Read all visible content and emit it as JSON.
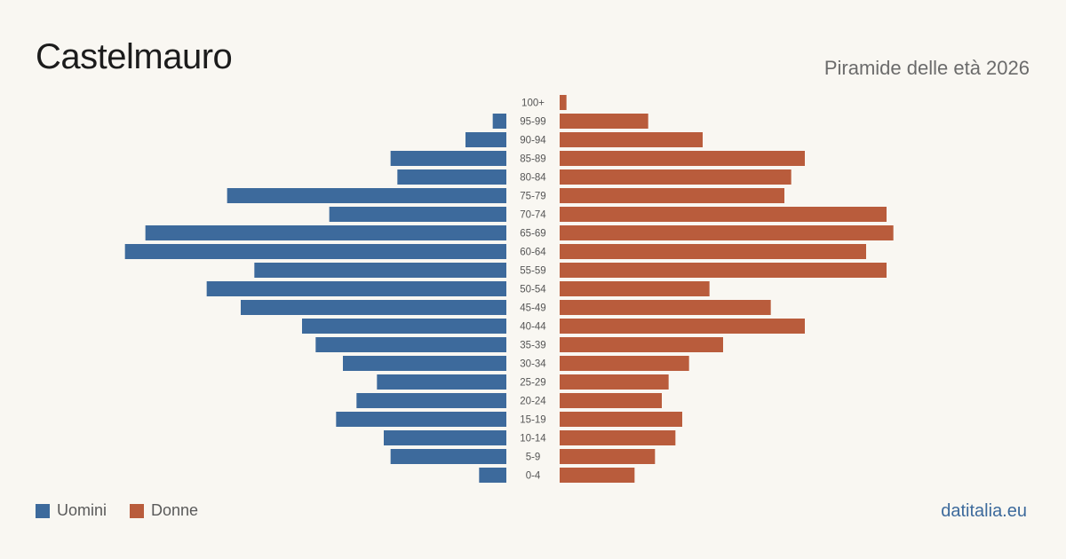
{
  "header": {
    "title": "Castelmauro",
    "subtitle": "Piramide delle età 2026"
  },
  "legend": {
    "men_label": "Uomini",
    "women_label": "Donne"
  },
  "footer": {
    "brand": "datitalia.eu"
  },
  "colors": {
    "men": "#3d6a9c",
    "women": "#b95c3c"
  },
  "chart_data": {
    "type": "bar",
    "orientation": "horizontal-pyramid",
    "categories": [
      "100+",
      "95-99",
      "90-94",
      "85-89",
      "80-84",
      "75-79",
      "70-74",
      "65-69",
      "60-64",
      "55-59",
      "50-54",
      "45-49",
      "40-44",
      "35-39",
      "30-34",
      "25-29",
      "20-24",
      "15-19",
      "10-14",
      "5-9",
      "0-4"
    ],
    "series": [
      {
        "name": "Uomini",
        "values": [
          0,
          2,
          6,
          17,
          16,
          41,
          26,
          53,
          56,
          37,
          44,
          39,
          30,
          28,
          24,
          19,
          22,
          25,
          18,
          17,
          4
        ]
      },
      {
        "name": "Donne",
        "values": [
          1,
          13,
          21,
          36,
          34,
          33,
          48,
          49,
          45,
          48,
          22,
          31,
          36,
          24,
          19,
          16,
          15,
          18,
          17,
          14,
          11
        ]
      }
    ],
    "xlim": [
      0,
      57
    ],
    "legend_position": "bottom-left",
    "grid": false
  }
}
